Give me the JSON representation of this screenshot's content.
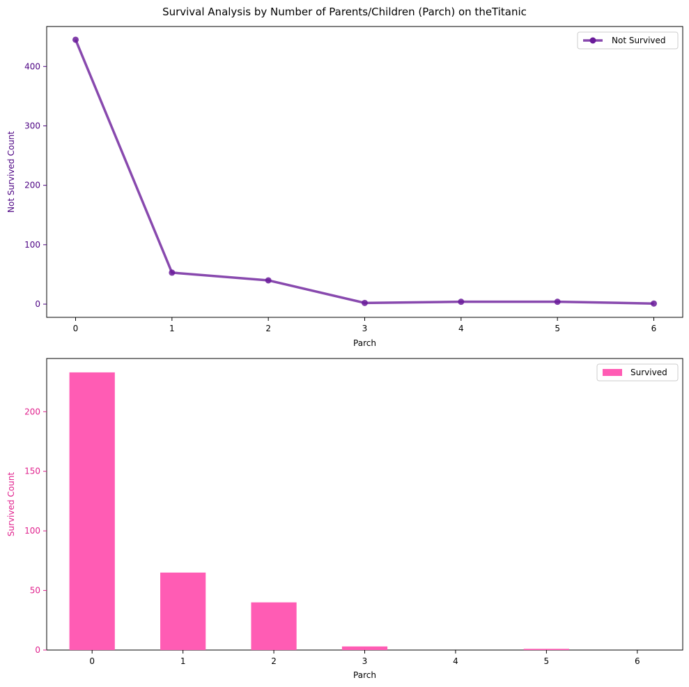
{
  "title": "Survival Analysis by Number of Parents/Children (Parch) on theTitanic",
  "colors": {
    "line": "#6a1b9a",
    "bar": "#ff5cb4",
    "line_label": "#4b0082",
    "bar_label": "#e0208c"
  },
  "chart_data": [
    {
      "type": "line",
      "x": [
        0,
        1,
        2,
        3,
        4,
        5,
        6
      ],
      "series": [
        {
          "name": "Not Survived",
          "values": [
            445,
            53,
            40,
            2,
            4,
            4,
            1
          ]
        }
      ],
      "xlabel": "Parch",
      "ylabel": "Not Survived Count",
      "xlim": [
        -0.3,
        6.3
      ],
      "ylim": [
        -22.25,
        467.25
      ],
      "yticks": [
        0,
        100,
        200,
        300,
        400
      ],
      "xticks": [
        0,
        1,
        2,
        3,
        4,
        5,
        6
      ],
      "grid": false,
      "legend": "top-right"
    },
    {
      "type": "bar",
      "categories": [
        "0",
        "1",
        "2",
        "3",
        "4",
        "5",
        "6"
      ],
      "series": [
        {
          "name": "Survived",
          "values": [
            233,
            65,
            40,
            3,
            0,
            1,
            0
          ]
        }
      ],
      "xlabel": "Parch",
      "ylabel": "Survived Count",
      "ylim": [
        0,
        244.65
      ],
      "yticks": [
        0,
        50,
        100,
        150,
        200
      ],
      "grid": false,
      "legend": "top-right"
    }
  ]
}
